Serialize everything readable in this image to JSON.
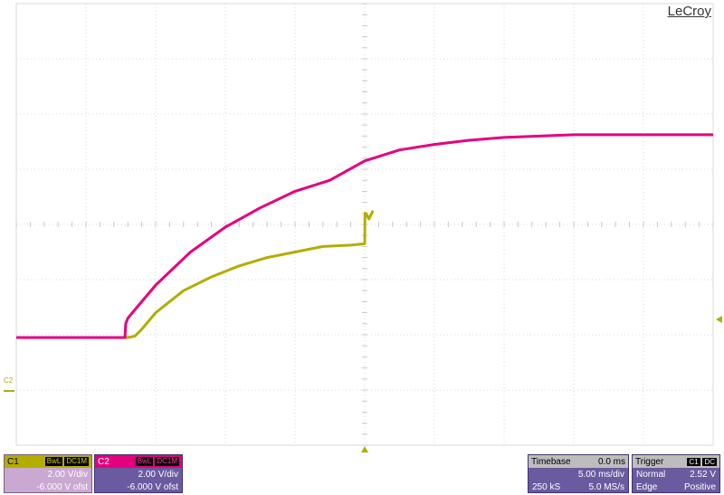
{
  "brand": "LeCroy",
  "colors": {
    "c1": "#b3ad00",
    "c2": "#e6007e",
    "grid": "#d8d8d8",
    "panel": "#6a5aa0"
  },
  "chart_data": {
    "type": "line",
    "x_unit": "ms",
    "y_unit": "V",
    "xlim": [
      -25,
      25
    ],
    "ylim": [
      -14,
      2
    ],
    "series": [
      {
        "name": "C1",
        "x": [
          -25,
          -17,
          -16.5,
          -16,
          -15,
          -13,
          -11,
          -9,
          -7,
          -5,
          -3,
          -1,
          0,
          0.02,
          0.1,
          0.3,
          0.6
        ],
        "y": [
          -10.1,
          -10.1,
          -10.05,
          -9.8,
          -9.2,
          -8.4,
          -7.9,
          -7.5,
          -7.2,
          -7.0,
          -6.8,
          -6.75,
          -6.7,
          -5.6,
          -5.6,
          -5.8,
          -5.5
        ]
      },
      {
        "name": "C2",
        "x": [
          -25,
          -17.2,
          -17.15,
          -17,
          -16.5,
          -15,
          -12.5,
          -10,
          -7.5,
          -5,
          -2.5,
          0,
          2.5,
          5,
          7.5,
          10,
          12.5,
          15,
          17.5,
          20,
          22.5,
          25
        ],
        "y": [
          -10.1,
          -10.1,
          -9.6,
          -9.4,
          -9.1,
          -8.2,
          -7.0,
          -6.1,
          -5.4,
          -4.8,
          -4.4,
          -3.7,
          -3.3,
          -3.1,
          -2.95,
          -2.85,
          -2.8,
          -2.75,
          -2.75,
          -2.75,
          -2.75,
          -2.75
        ]
      }
    ],
    "c2_ground_marker": "C2",
    "grid": true
  },
  "channels": [
    {
      "id": "C1",
      "bw": "BwL",
      "coupling": "DC1M",
      "scale": "2.00 V/div",
      "offset": "-6.000 V ofst"
    },
    {
      "id": "C2",
      "bw": "BwL",
      "coupling": "DC1M",
      "scale": "2.00 V/div",
      "offset": "-6.000 V ofst"
    }
  ],
  "timebase": {
    "title": "Timebase",
    "delay": "0.0 ms",
    "scale": "5.00 ms/div",
    "points": "250 kS",
    "rate": "5.0 MS/s"
  },
  "trigger": {
    "title": "Trigger",
    "source": "C1",
    "coupling": "DC",
    "mode": "Normal",
    "level": "2.52 V",
    "type": "Edge",
    "slope": "Positive"
  }
}
